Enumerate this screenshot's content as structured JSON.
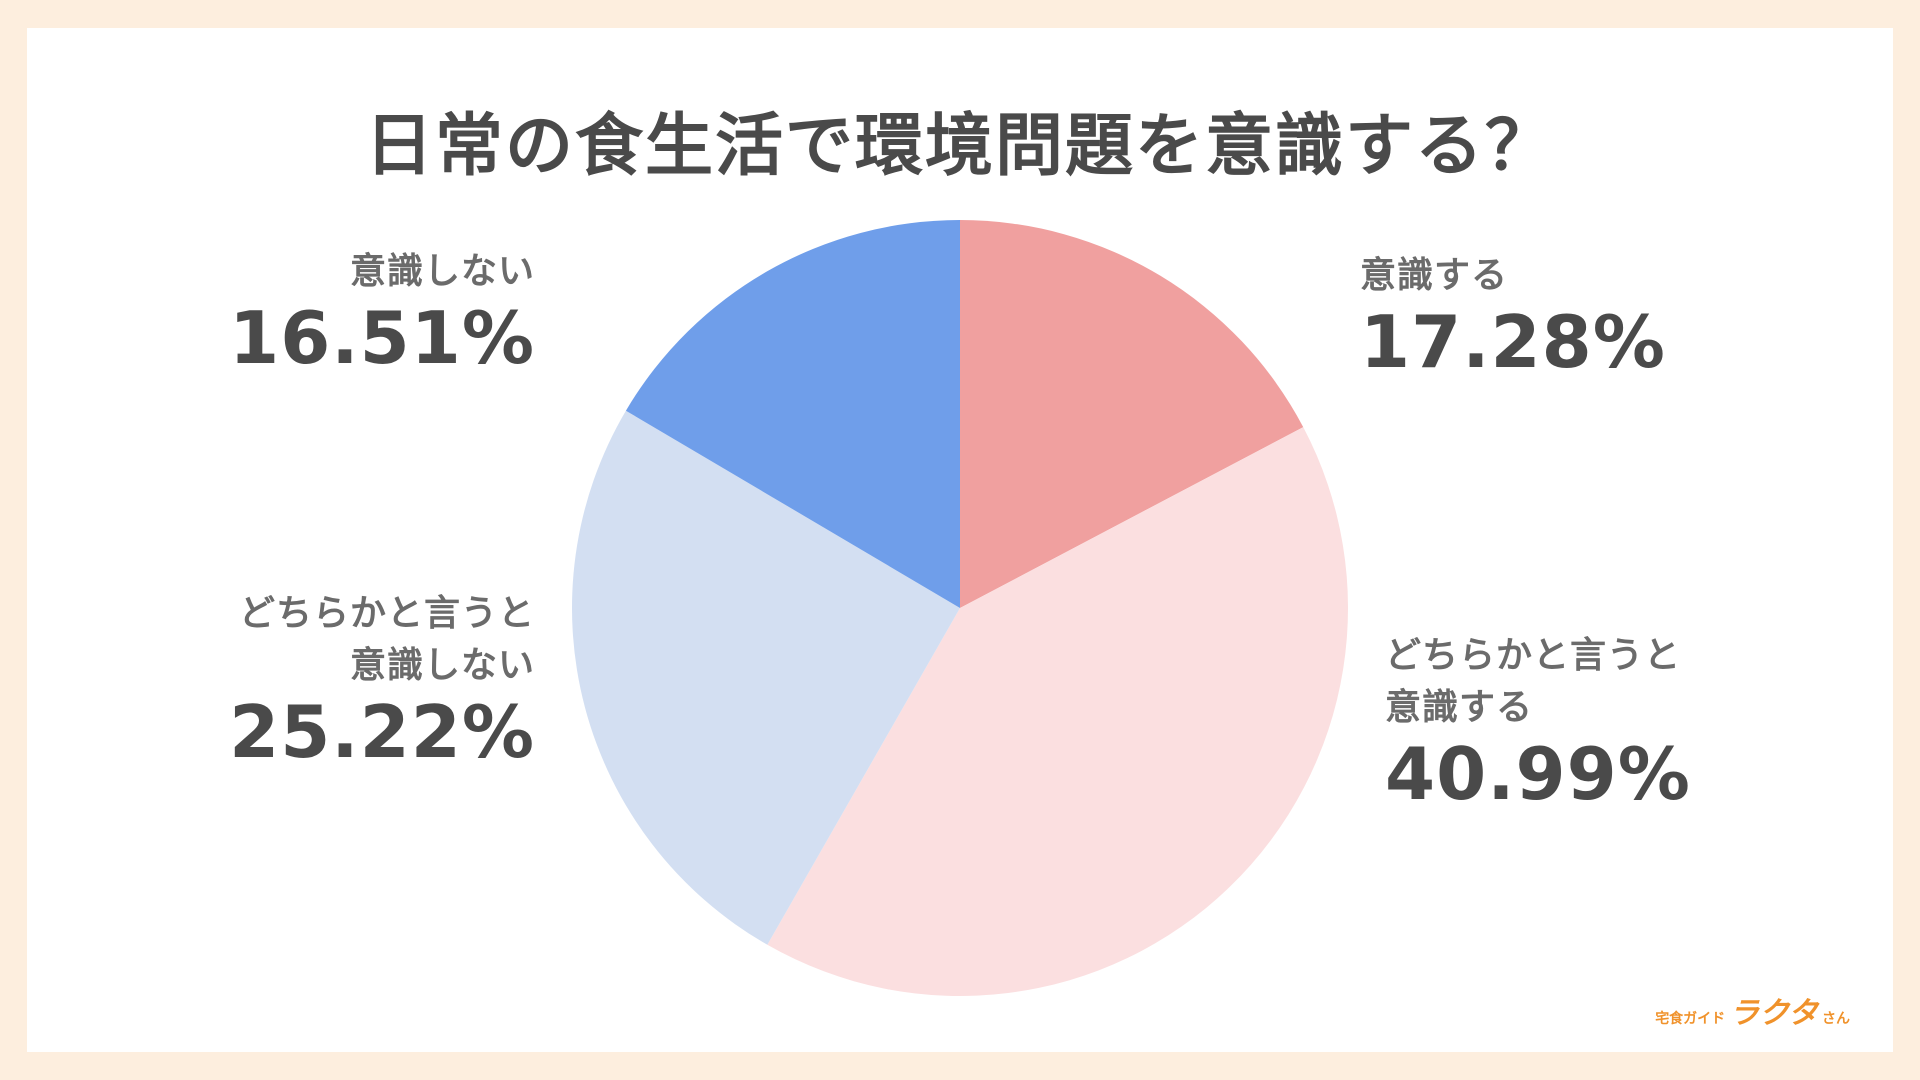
{
  "chart_data": {
    "type": "pie",
    "title": "日常の食生活で環境問題を意識する？",
    "slices": [
      {
        "label_lines": [
          "意識する"
        ],
        "value": 17.28,
        "value_label": "17.28%",
        "color": "#f0a09f"
      },
      {
        "label_lines": [
          "どちらかと言うと",
          "意識する"
        ],
        "value": 40.99,
        "value_label": "40.99%",
        "color": "#fbdfe0"
      },
      {
        "label_lines": [
          "どちらかと言うと",
          "意識しない"
        ],
        "value": 25.22,
        "value_label": "25.22%",
        "color": "#d3dff2"
      },
      {
        "label_lines": [
          "意識しない"
        ],
        "value": 16.51,
        "value_label": "16.51%",
        "color": "#6f9eea"
      }
    ]
  },
  "brand": {
    "prefix": "宅食ガイド",
    "name": "ラクタ",
    "suffix": "さん"
  }
}
